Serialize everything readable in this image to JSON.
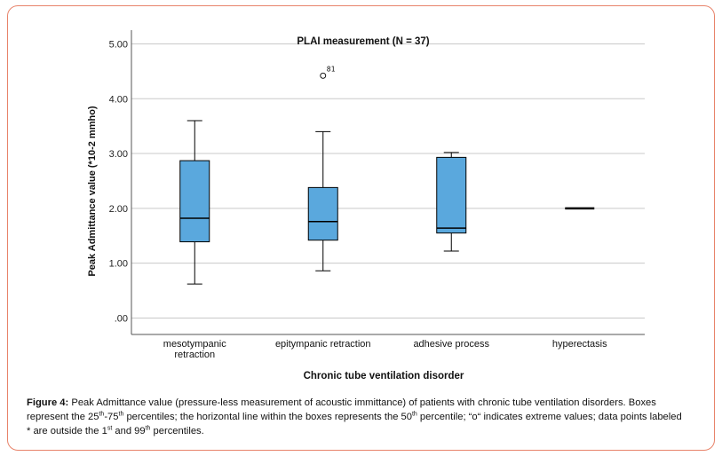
{
  "chart_data": {
    "type": "boxplot",
    "title": "PLAI measurement (N = 37)",
    "xlabel": "Chronic tube ventilation disorder",
    "ylabel": "Peak Admittance value (*10-2 mmho)",
    "ylim": [
      -0.3,
      5.25
    ],
    "yticks": [
      0,
      1,
      2,
      3,
      4,
      5
    ],
    "ytick_labels": [
      ".00",
      "1.00",
      "2.00",
      "3.00",
      "4.00",
      "5.00"
    ],
    "grid": "horizontal",
    "box_color": "#5aa8dd",
    "categories": [
      {
        "label_lines": [
          "mesotympanic",
          "retraction"
        ],
        "min": 0.62,
        "q1": 1.39,
        "median": 1.82,
        "q3": 2.87,
        "max": 3.6
      },
      {
        "label_lines": [
          "epitympanic retraction"
        ],
        "min": 0.86,
        "q1": 1.42,
        "median": 1.76,
        "q3": 2.38,
        "max": 3.4,
        "outliers": [
          {
            "value": 4.42,
            "label": "81"
          }
        ]
      },
      {
        "label_lines": [
          "adhesive process"
        ],
        "min": 1.22,
        "q1": 1.55,
        "median": 1.64,
        "q3": 2.93,
        "max": 3.02
      },
      {
        "label_lines": [
          "hyperectasis"
        ],
        "min": 2.0,
        "q1": 2.0,
        "median": 2.0,
        "q3": 2.0,
        "max": 2.0
      }
    ]
  },
  "caption": {
    "label": "Figure 4:",
    "part1": " Peak Admittance value (pressure-less measurement of acoustic immittance) of patients with chronic tube ventilation disorders. Boxes represent the 25",
    "sup1": "th",
    "part2": "-75",
    "sup2": "th",
    "part3": " percentiles; the horizontal line within the boxes represents the 50",
    "sup3": "th",
    "part4": " percentile; “o“ indicates extreme values; data points labeled * are outside the 1",
    "sup4": "st",
    "part5": " and 99",
    "sup5": "th",
    "part6": " percentiles."
  }
}
